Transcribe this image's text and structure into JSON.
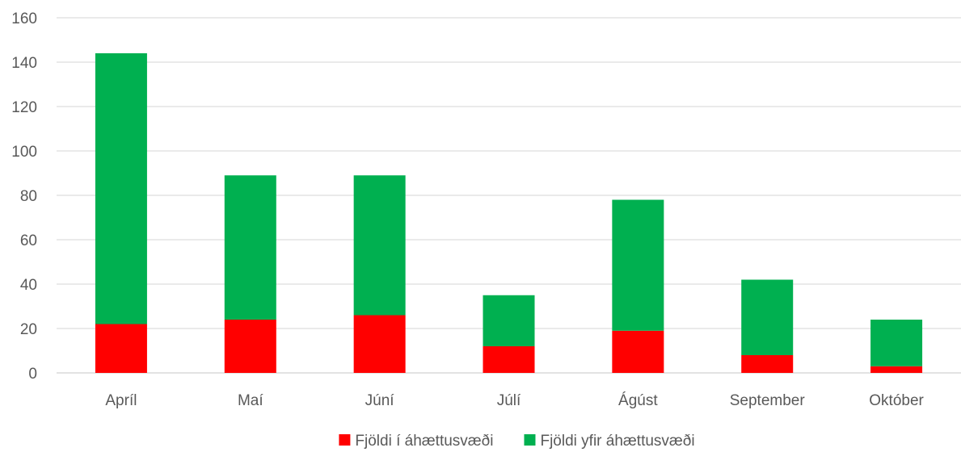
{
  "chart_data": {
    "type": "bar",
    "stacked": true,
    "categories": [
      "Apríl",
      "Maí",
      "Júní",
      "Júlí",
      "Ágúst",
      "September",
      "Október"
    ],
    "series": [
      {
        "name": "Fjöldi í áhættusvæði",
        "color": "#ff0000",
        "values": [
          22,
          24,
          26,
          12,
          19,
          8,
          3
        ]
      },
      {
        "name": "Fjöldi yfir áhættusvæði",
        "color": "#00b050",
        "values": [
          122,
          65,
          63,
          23,
          59,
          34,
          21
        ]
      }
    ],
    "ylim": [
      0,
      160
    ],
    "yticks": [
      0,
      20,
      40,
      60,
      80,
      100,
      120,
      140,
      160
    ],
    "grid": true,
    "legend": "bottom-center",
    "title": "",
    "xlabel": "",
    "ylabel": ""
  }
}
